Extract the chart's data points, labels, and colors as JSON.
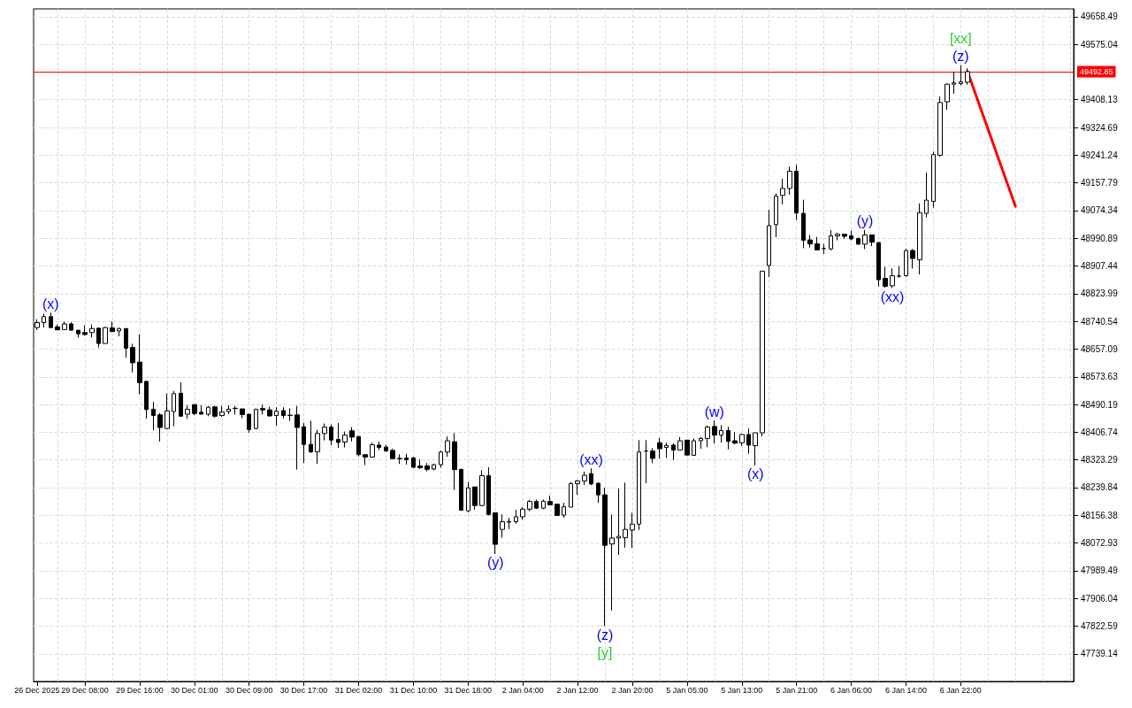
{
  "chart_data": {
    "type": "candlestick",
    "categories": [
      "26 Dec 2025",
      null,
      null,
      null,
      null,
      null,
      null,
      "29 Dec 08:00",
      null,
      null,
      null,
      null,
      null,
      null,
      null,
      "29 Dec 16:00",
      null,
      null,
      null,
      null,
      null,
      null,
      null,
      "30 Dec 01:00",
      null,
      null,
      null,
      null,
      null,
      null,
      null,
      "30 Dec 09:00",
      null,
      null,
      null,
      null,
      null,
      null,
      null,
      "30 Dec 17:00",
      null,
      null,
      null,
      null,
      null,
      null,
      null,
      "31 Dec 02:00",
      null,
      null,
      null,
      null,
      null,
      null,
      null,
      "31 Dec 10:00",
      null,
      null,
      null,
      null,
      null,
      null,
      null,
      "31 Dec 18:00",
      null,
      null,
      null,
      null,
      null,
      null,
      null,
      "2 Jan 04:00",
      null,
      null,
      null,
      null,
      null,
      null,
      null,
      "2 Jan 12:00",
      null,
      null,
      null,
      null,
      null,
      null,
      null,
      "2 Jan 20:00",
      null,
      null,
      null,
      null,
      null,
      null,
      null,
      "5 Jan 05:00",
      null,
      null,
      null,
      null,
      null,
      null,
      null,
      "5 Jan 13:00",
      null,
      null,
      null,
      null,
      null,
      null,
      null,
      "5 Jan 21:00",
      null,
      null,
      null,
      null,
      null,
      null,
      null,
      "6 Jan 06:00",
      null,
      null,
      null,
      null,
      null,
      null,
      null,
      "6 Jan 14:00",
      null,
      null,
      null,
      null,
      null,
      null,
      null,
      "6 Jan 22:00",
      null,
      null,
      null,
      null,
      null,
      null,
      null,
      null,
      null,
      null,
      null,
      null,
      null,
      null,
      null,
      null
    ],
    "ohlc": [
      [
        48722,
        48747,
        48714,
        48737
      ],
      [
        48737,
        48764,
        48722,
        48755
      ],
      [
        48755,
        48767,
        48720,
        48722
      ],
      [
        48724,
        48731,
        48715,
        48715
      ],
      [
        48716,
        48740,
        48715,
        48733
      ],
      [
        48733,
        48738,
        48714,
        48714
      ],
      [
        48714,
        48714,
        48692,
        48703
      ],
      [
        48707,
        48729,
        48698,
        48701
      ],
      [
        48707,
        48731,
        48692,
        48719
      ],
      [
        48720,
        48722,
        48662,
        48674
      ],
      [
        48674,
        48724,
        48674,
        48722
      ],
      [
        48721,
        48740,
        48708,
        48710
      ],
      [
        48712,
        48722,
        48696,
        48719
      ],
      [
        48719,
        48719,
        48631,
        48660
      ],
      [
        48662,
        48673,
        48587,
        48616
      ],
      [
        48618,
        48701,
        48521,
        48556
      ],
      [
        48560,
        48560,
        48447,
        48475
      ],
      [
        48476,
        48498,
        48412,
        48457
      ],
      [
        48459,
        48464,
        48379,
        48421
      ],
      [
        48418,
        48523,
        48416,
        48471
      ],
      [
        48469,
        48531,
        48425,
        48523
      ],
      [
        48524,
        48557,
        48455,
        48455
      ],
      [
        48461,
        48489,
        48447,
        48476
      ],
      [
        48490,
        48490,
        48458,
        48463
      ],
      [
        48467,
        48488,
        48461,
        48461
      ],
      [
        48461,
        48486,
        48455,
        48482
      ],
      [
        48483,
        48486,
        48451,
        48455
      ],
      [
        48457,
        48486,
        48453,
        48468
      ],
      [
        48469,
        48488,
        48461,
        48476
      ],
      [
        48479,
        48486,
        48460,
        48478
      ],
      [
        48477,
        48477,
        48449,
        48460
      ],
      [
        48461,
        48461,
        48405,
        48415
      ],
      [
        48418,
        48476,
        48415,
        48476
      ],
      [
        48478,
        48490,
        48460,
        48474
      ],
      [
        48474,
        48484,
        48453,
        48456
      ],
      [
        48457,
        48482,
        48426,
        48470
      ],
      [
        48472,
        48482,
        48448,
        48457
      ],
      [
        48458,
        48479,
        48441,
        48457
      ],
      [
        48459,
        48486,
        48294,
        48421
      ],
      [
        48423,
        48435,
        48314,
        48370
      ],
      [
        48370,
        48441,
        48344,
        48348
      ],
      [
        48348,
        48414,
        48311,
        48403
      ],
      [
        48403,
        48433,
        48382,
        48422
      ],
      [
        48422,
        48430,
        48368,
        48383
      ],
      [
        48385,
        48435,
        48359,
        48376
      ],
      [
        48377,
        48409,
        48361,
        48398
      ],
      [
        48411,
        48422,
        48379,
        48392
      ],
      [
        48394,
        48394,
        48334,
        48339
      ],
      [
        48339,
        48339,
        48308,
        48332
      ],
      [
        48332,
        48375,
        48330,
        48369
      ],
      [
        48368,
        48378,
        48353,
        48361
      ],
      [
        48362,
        48369,
        48350,
        48350
      ],
      [
        48352,
        48357,
        48327,
        48327
      ],
      [
        48328,
        48340,
        48311,
        48327
      ],
      [
        48329,
        48342,
        48309,
        48324
      ],
      [
        48329,
        48333,
        48299,
        48301
      ],
      [
        48305,
        48325,
        48296,
        48300
      ],
      [
        48305,
        48314,
        48289,
        48295
      ],
      [
        48296,
        48312,
        48292,
        48309
      ],
      [
        48309,
        48351,
        48300,
        48347
      ],
      [
        48347,
        48394,
        48333,
        48381
      ],
      [
        48378,
        48404,
        48233,
        48294
      ],
      [
        48295,
        48295,
        48170,
        48172
      ],
      [
        48170,
        48257,
        48165,
        48239
      ],
      [
        48242,
        48242,
        48173,
        48186
      ],
      [
        48186,
        48292,
        48184,
        48276
      ],
      [
        48276,
        48301,
        48156,
        48159
      ],
      [
        48164,
        48164,
        48040,
        48069
      ],
      [
        48114,
        48159,
        48089,
        48137
      ],
      [
        48136,
        48149,
        48115,
        48138
      ],
      [
        48137,
        48173,
        48131,
        48152
      ],
      [
        48152,
        48181,
        48143,
        48175
      ],
      [
        48175,
        48203,
        48169,
        48198
      ],
      [
        48198,
        48204,
        48176,
        48178
      ],
      [
        48178,
        48204,
        48175,
        48199
      ],
      [
        48198,
        48216,
        48188,
        48188
      ],
      [
        48190,
        48190,
        48155,
        48156
      ],
      [
        48157,
        48194,
        48149,
        48182
      ],
      [
        48181,
        48257,
        48181,
        48252
      ],
      [
        48252,
        48263,
        48218,
        48260
      ],
      [
        48260,
        48288,
        48248,
        48277
      ],
      [
        48282,
        48298,
        48247,
        48251
      ],
      [
        48253,
        48256,
        48194,
        48218
      ],
      [
        48218,
        48239,
        47823,
        48066
      ],
      [
        48070,
        48159,
        47870,
        48088
      ],
      [
        48088,
        48237,
        48037,
        48093
      ],
      [
        48089,
        48255,
        48059,
        48114
      ],
      [
        48112,
        48164,
        48058,
        48130
      ],
      [
        48130,
        48383,
        48112,
        48347
      ],
      [
        48350,
        48383,
        48253,
        48350
      ],
      [
        48350,
        48359,
        48314,
        48328
      ],
      [
        48375,
        48390,
        48327,
        48357
      ],
      [
        48361,
        48375,
        48329,
        48367
      ],
      [
        48368,
        48373,
        48323,
        48353
      ],
      [
        48353,
        48392,
        48353,
        48381
      ],
      [
        48383,
        48383,
        48338,
        48338
      ],
      [
        48337,
        48388,
        48336,
        48381
      ],
      [
        48381,
        48392,
        48357,
        48388
      ],
      [
        48388,
        48427,
        48362,
        48422
      ],
      [
        48424,
        48442,
        48372,
        48398
      ],
      [
        48398,
        48428,
        48375,
        48412
      ],
      [
        48412,
        48423,
        48355,
        48379
      ],
      [
        48381,
        48407,
        48370,
        48374
      ],
      [
        48375,
        48402,
        48366,
        48400
      ],
      [
        48400,
        48418,
        48342,
        48368
      ],
      [
        48366,
        48405,
        48307,
        48405
      ],
      [
        48405,
        48892,
        48394,
        48892
      ],
      [
        48909,
        49077,
        48874,
        49029
      ],
      [
        49032,
        49126,
        48994,
        49118
      ],
      [
        49120,
        49170,
        49093,
        49141
      ],
      [
        49141,
        49207,
        49122,
        49193
      ],
      [
        49193,
        49212,
        49046,
        49067
      ],
      [
        49066,
        49107,
        48961,
        48985
      ],
      [
        48986,
        49001,
        48963,
        48974
      ],
      [
        48974,
        48995,
        48954,
        48956
      ],
      [
        48960,
        48974,
        48944,
        48960
      ],
      [
        48959,
        49016,
        48954,
        48998
      ],
      [
        48998,
        49007,
        48985,
        49003
      ],
      [
        49003,
        49003,
        48989,
        48997
      ],
      [
        48998,
        49014,
        48985,
        48989
      ],
      [
        48990,
        48993,
        48972,
        48973
      ],
      [
        48973,
        49016,
        48958,
        49001
      ],
      [
        49001,
        49001,
        48967,
        48979
      ],
      [
        48978,
        48980,
        48846,
        48866
      ],
      [
        48870,
        48905,
        48842,
        48846
      ],
      [
        48848,
        48900,
        48841,
        48878
      ],
      [
        48877,
        48907,
        48872,
        48877
      ],
      [
        48878,
        48959,
        48876,
        48954
      ],
      [
        48954,
        48959,
        48900,
        48930
      ],
      [
        48926,
        49096,
        48882,
        49068
      ],
      [
        49066,
        49189,
        49054,
        49106
      ],
      [
        49102,
        49252,
        49083,
        49243
      ],
      [
        49241,
        49418,
        49237,
        49400
      ],
      [
        49402,
        49457,
        49378,
        49455
      ],
      [
        49455,
        49493,
        49426,
        49459
      ],
      [
        49457,
        49512,
        49452,
        49462
      ],
      [
        49461,
        49503,
        49454,
        49492.85
      ],
      null,
      null,
      null,
      null,
      null,
      null,
      null,
      null,
      null,
      null,
      null,
      null,
      null,
      null,
      null
    ],
    "series": [
      {
        "type": "line",
        "color": "#ff0000",
        "values": [
          null,
          null,
          null,
          null,
          null,
          null,
          null,
          null,
          null,
          null,
          null,
          null,
          null,
          null,
          null,
          null,
          null,
          null,
          null,
          null,
          null,
          null,
          null,
          null,
          null,
          null,
          null,
          null,
          null,
          null,
          null,
          null,
          null,
          null,
          null,
          null,
          null,
          null,
          null,
          null,
          null,
          null,
          null,
          null,
          null,
          null,
          null,
          null,
          null,
          null,
          null,
          null,
          null,
          null,
          null,
          null,
          null,
          null,
          null,
          null,
          null,
          null,
          null,
          null,
          null,
          null,
          null,
          null,
          null,
          null,
          null,
          null,
          null,
          null,
          null,
          null,
          null,
          null,
          null,
          null,
          null,
          null,
          null,
          null,
          null,
          null,
          null,
          null,
          null,
          null,
          null,
          null,
          null,
          null,
          null,
          null,
          null,
          null,
          null,
          null,
          null,
          null,
          null,
          null,
          null,
          null,
          null,
          null,
          null,
          null,
          null,
          null,
          null,
          null,
          null,
          null,
          null,
          null,
          null,
          null,
          null,
          null,
          null,
          null,
          null,
          null,
          null,
          null,
          null,
          null,
          null,
          null,
          null,
          null,
          null,
          null,
          49493,
          null,
          null,
          null,
          null,
          null,
          null,
          49087,
          null,
          null,
          null,
          null,
          null,
          null,
          null,
          null
        ]
      }
    ],
    "ylim": [
      47656,
      49682
    ],
    "yticks": [
      47739.14,
      47822.59,
      47906.04,
      47989.49,
      48072.93,
      48156.38,
      48239.84,
      48323.29,
      48406.74,
      48490.19,
      48573.63,
      48657.09,
      48740.54,
      48823.99,
      48907.44,
      48990.89,
      49074.34,
      49157.79,
      49241.24,
      49324.69,
      49408.13,
      49575.04,
      49658.49
    ],
    "ref_lines": [
      {
        "axis": "y",
        "value": 49492.85,
        "label": "49492.85",
        "color": "#ff0000"
      }
    ],
    "annotations": [
      "(x)",
      "(y)",
      "(xx)",
      "(z)",
      "[y]",
      "(w)",
      "(x)",
      "(y)",
      "(xx)",
      "(z)",
      "[xx]"
    ],
    "grid": true
  }
}
